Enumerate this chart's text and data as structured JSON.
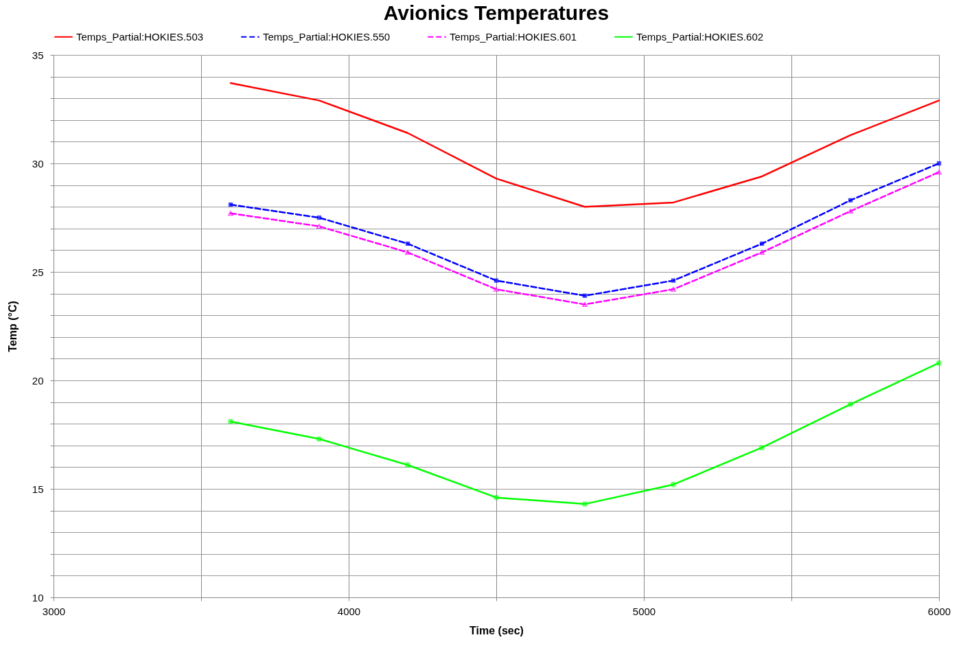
{
  "chart_data": {
    "type": "line",
    "title": "Avionics Temperatures",
    "xlabel": "Time (sec)",
    "ylabel": "Temp (°C)",
    "x": [
      3600,
      3900,
      4200,
      4500,
      4800,
      5100,
      5400,
      5700,
      6000
    ],
    "series": [
      {
        "name": "Temps_Partial:HOKIES.503",
        "color": "#ff0000",
        "marker": "none",
        "line_style": "solid",
        "values": [
          33.7,
          32.9,
          31.4,
          29.3,
          28.0,
          28.2,
          29.4,
          31.3,
          32.9
        ]
      },
      {
        "name": "Temps_Partial:HOKIES.550",
        "color": "#0000ff",
        "marker": "square",
        "line_style": "dashed",
        "values": [
          28.1,
          27.5,
          26.3,
          24.6,
          23.9,
          24.6,
          26.3,
          28.3,
          30.0
        ]
      },
      {
        "name": "Temps_Partial:HOKIES.601",
        "color": "#ff00ff",
        "marker": "triangle",
        "line_style": "dashed",
        "values": [
          27.7,
          27.1,
          25.9,
          24.2,
          23.5,
          24.2,
          25.9,
          27.8,
          29.6
        ]
      },
      {
        "name": "Temps_Partial:HOKIES.602",
        "color": "#00ff00",
        "marker": "cross",
        "line_style": "solid",
        "values": [
          18.1,
          17.3,
          16.1,
          14.6,
          14.3,
          15.2,
          16.9,
          18.9,
          20.8
        ]
      }
    ],
    "xlim": [
      3000,
      6000
    ],
    "xticks": [
      3000,
      {
        "value": 3500,
        "label": null
      },
      4000,
      {
        "value": 4500,
        "label": null
      },
      5000,
      {
        "value": 5500,
        "label": null
      },
      6000
    ],
    "ylim": [
      10,
      35
    ],
    "yticks": [
      10,
      {
        "value": 11,
        "label": null
      },
      {
        "value": 12,
        "label": null
      },
      {
        "value": 13,
        "label": null
      },
      {
        "value": 14,
        "label": null
      },
      15,
      {
        "value": 16,
        "label": null
      },
      {
        "value": 17,
        "label": null
      },
      {
        "value": 18,
        "label": null
      },
      {
        "value": 19,
        "label": null
      },
      20,
      {
        "value": 21,
        "label": null
      },
      {
        "value": 22,
        "label": null
      },
      {
        "value": 23,
        "label": null
      },
      {
        "value": 24,
        "label": null
      },
      25,
      {
        "value": 26,
        "label": null
      },
      {
        "value": 27,
        "label": null
      },
      {
        "value": 28,
        "label": null
      },
      {
        "value": 29,
        "label": null
      },
      30,
      {
        "value": 31,
        "label": null
      },
      {
        "value": 32,
        "label": null
      },
      {
        "value": 33,
        "label": null
      },
      {
        "value": 34,
        "label": null
      },
      35
    ],
    "grid": true,
    "legend": "top"
  }
}
